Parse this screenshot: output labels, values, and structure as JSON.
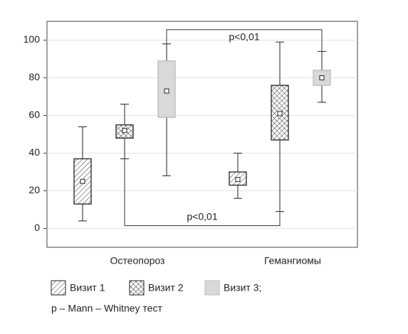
{
  "chart_data": {
    "type": "box",
    "categories": [
      "Остеопороз",
      "Гемангиомы"
    ],
    "series": [
      {
        "name": "Визит 1",
        "pattern": "hatch",
        "min": [
          4,
          16
        ],
        "q1": [
          13,
          23
        ],
        "median": [
          25,
          26
        ],
        "q3": [
          37,
          30
        ],
        "max": [
          54,
          40
        ]
      },
      {
        "name": "Визит 2",
        "pattern": "crosshatch",
        "min": [
          37,
          9
        ],
        "q1": [
          48,
          47
        ],
        "median": [
          52,
          61
        ],
        "q3": [
          55,
          76
        ],
        "max": [
          66,
          99
        ]
      },
      {
        "name": "Визит 3;",
        "pattern": "gray",
        "min": [
          28,
          67
        ],
        "q1": [
          59,
          76
        ],
        "median": [
          73,
          80
        ],
        "q3": [
          89,
          84
        ],
        "max": [
          98,
          94
        ]
      }
    ],
    "ylim": [
      -10,
      110
    ],
    "yticks": [
      0,
      20,
      40,
      60,
      80,
      100
    ],
    "grid": true,
    "annotations": [
      {
        "text": "p<0,01",
        "series": 2,
        "side": "top"
      },
      {
        "text": "p<0,01",
        "series": 1,
        "side": "bottom"
      }
    ],
    "note": "p – Mann – Whitney тест"
  }
}
